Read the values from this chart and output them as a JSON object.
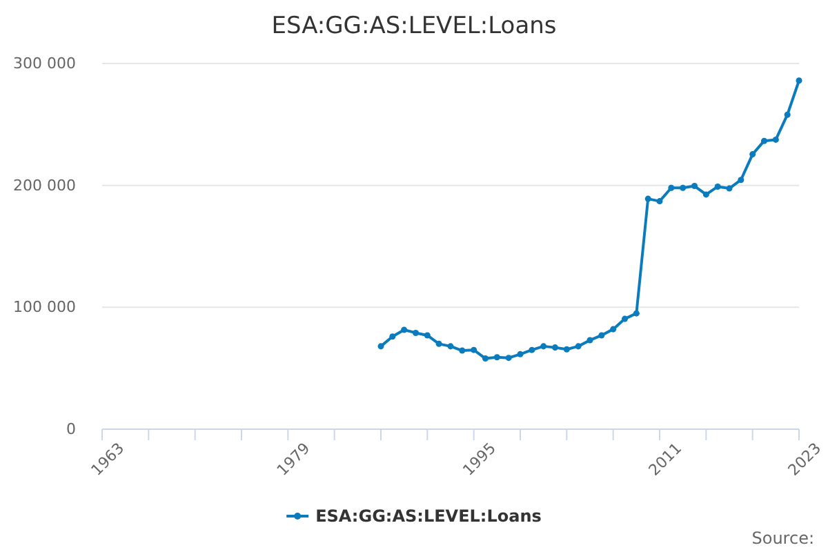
{
  "chart_data": {
    "type": "line",
    "title": "ESA:GG:AS:LEVEL:Loans",
    "x": [
      1987,
      1988,
      1989,
      1990,
      1991,
      1992,
      1993,
      1994,
      1995,
      1996,
      1997,
      1998,
      1999,
      2000,
      2001,
      2002,
      2003,
      2004,
      2005,
      2006,
      2007,
      2008,
      2009,
      2010,
      2011,
      2012,
      2013,
      2014,
      2015,
      2016,
      2017,
      2018,
      2019,
      2020,
      2021,
      2022,
      2023
    ],
    "series": [
      {
        "name": "ESA:GG:AS:LEVEL:Loans",
        "color": "#0a7bbd",
        "values": [
          68000,
          76000,
          81500,
          79000,
          77000,
          70000,
          68000,
          64500,
          65000,
          58000,
          59000,
          58500,
          61500,
          65000,
          68000,
          67000,
          65500,
          68000,
          73000,
          77000,
          82000,
          90500,
          95000,
          189000,
          187000,
          198000,
          198000,
          199500,
          192500,
          199000,
          197500,
          204500,
          225500,
          236500,
          237500,
          258000,
          286000
        ]
      }
    ],
    "xlim": [
      1963,
      2023
    ],
    "xticks": [
      1963,
      {
        "value": 1967,
        "label": null
      },
      {
        "value": 1971,
        "label": null
      },
      {
        "value": 1975,
        "label": null
      },
      1979,
      {
        "value": 1983,
        "label": null
      },
      {
        "value": 1987,
        "label": null
      },
      {
        "value": 1991,
        "label": null
      },
      1995,
      {
        "value": 1999,
        "label": null
      },
      {
        "value": 2003,
        "label": null
      },
      {
        "value": 2007,
        "label": null
      },
      2011,
      {
        "value": 2015,
        "label": null
      },
      {
        "value": 2019,
        "label": null
      },
      2023
    ],
    "ylim": [
      0,
      300000
    ],
    "yticks": [
      0,
      {
        "value": 100000,
        "label": "100 000"
      },
      {
        "value": 200000,
        "label": "200 000"
      },
      {
        "value": 300000,
        "label": "300 000"
      }
    ],
    "grid": "y",
    "legend": "bottom",
    "marker": "circle",
    "line_style": "solid",
    "annotations": [
      "Source:"
    ]
  }
}
